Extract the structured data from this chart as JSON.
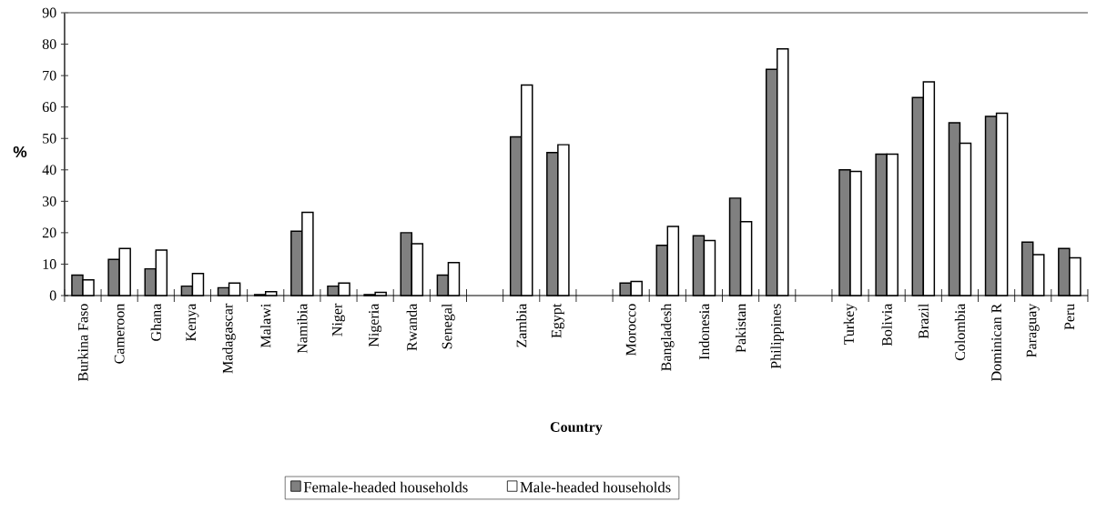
{
  "chart_data": {
    "type": "bar",
    "xlabel": "Country",
    "ylabel": "%",
    "categories": [
      "Burkina Faso",
      "Cameroon",
      "Ghana",
      "Kenya",
      "Madagascar",
      "Malawi",
      "Namibia",
      "Niger",
      "Nigeria",
      "Rwanda",
      "Senegal",
      null,
      "Zambia",
      "Egypt",
      null,
      "Morocco",
      "Bangladesh",
      "Indonesia",
      "Pakistan",
      "Philippines",
      null,
      "Turkey",
      "Bolivia",
      "Brazil",
      "Colombia",
      "Dominican R",
      "Paraguay",
      "Peru"
    ],
    "series": [
      {
        "name": "Female-headed households",
        "color": "#808080",
        "values": [
          6.5,
          11.5,
          8.5,
          3,
          2.5,
          0.3,
          20.5,
          3,
          0.3,
          20,
          6.5,
          null,
          50.5,
          45.5,
          null,
          4,
          16,
          19,
          31,
          72,
          null,
          40,
          45,
          63,
          55,
          57,
          17,
          15
        ]
      },
      {
        "name": "Male-headed households",
        "color": "#ffffff",
        "values": [
          5,
          15,
          14.5,
          7,
          4,
          1.2,
          26.5,
          4,
          1,
          16.5,
          10.5,
          null,
          67,
          48,
          null,
          4.5,
          22,
          17.5,
          23.5,
          78.5,
          null,
          39.5,
          45,
          68,
          48.5,
          58,
          13,
          12
        ]
      }
    ],
    "ylim": [
      0,
      90
    ],
    "yticks": [
      0,
      10,
      20,
      30,
      40,
      50,
      60,
      70,
      80,
      90
    ],
    "legend": "bottom"
  }
}
